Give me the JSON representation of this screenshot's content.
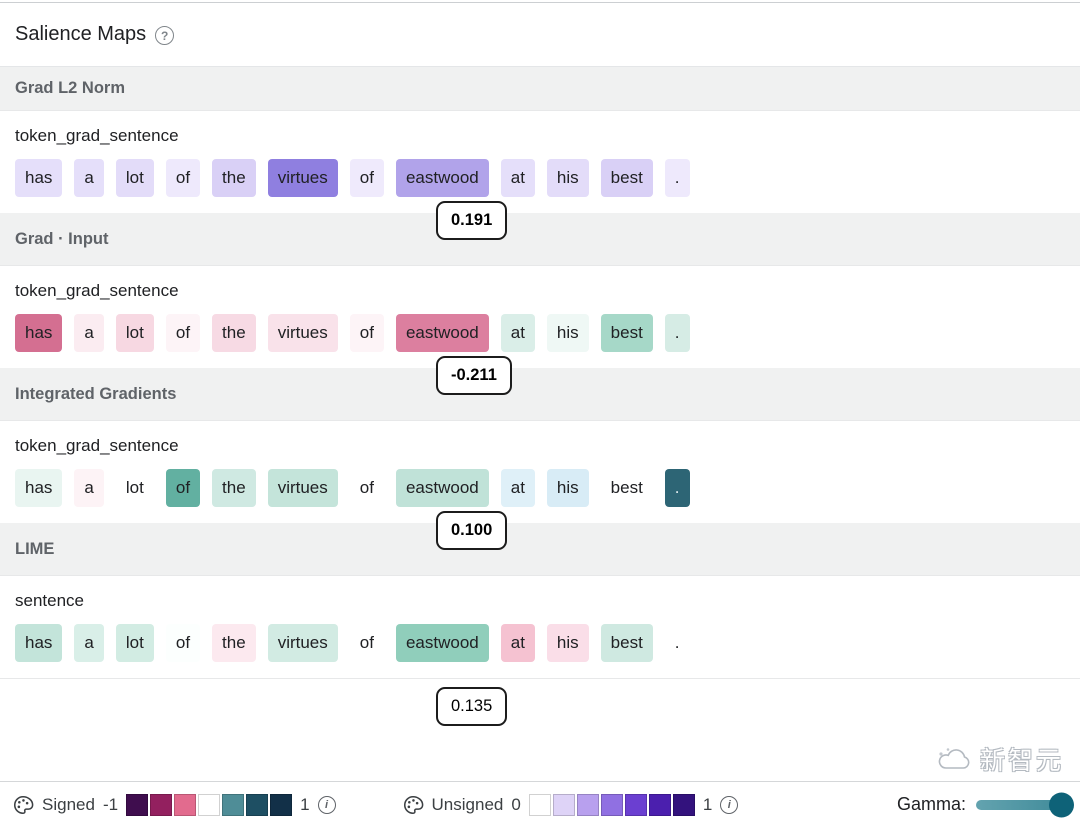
{
  "title": "Salience Maps",
  "help_icon": "?",
  "sections": [
    {
      "header": "Grad L2 Norm",
      "row_label": "token_grad_sentence",
      "badge": "0.191",
      "tokens": [
        {
          "text": "has",
          "bg": "#e5dffa"
        },
        {
          "text": "a",
          "bg": "#e5dffa"
        },
        {
          "text": "lot",
          "bg": "#e3dcf9"
        },
        {
          "text": "of",
          "bg": "#eee9fc"
        },
        {
          "text": "the",
          "bg": "#d9d0f6"
        },
        {
          "text": "virtues",
          "bg": "#8f7fe0"
        },
        {
          "text": "of",
          "bg": "#efeafc"
        },
        {
          "text": "eastwood",
          "bg": "#b1a3ea"
        },
        {
          "text": "at",
          "bg": "#e5dffa"
        },
        {
          "text": "his",
          "bg": "#e3dcf9"
        },
        {
          "text": "best",
          "bg": "#d9d0f6"
        },
        {
          "text": ".",
          "bg": "#eee9fc"
        }
      ]
    },
    {
      "header": "Grad · Input",
      "row_label": "token_grad_sentence",
      "badge": "-0.211",
      "tokens": [
        {
          "text": "has",
          "bg": "#d46f91"
        },
        {
          "text": "a",
          "bg": "#fbecf1"
        },
        {
          "text": "lot",
          "bg": "#f7d8e2"
        },
        {
          "text": "of",
          "bg": "#fdf4f7"
        },
        {
          "text": "the",
          "bg": "#f7dae4"
        },
        {
          "text": "virtues",
          "bg": "#f9e2ea"
        },
        {
          "text": "of",
          "bg": "#fdf4f7"
        },
        {
          "text": "eastwood",
          "bg": "#dc7f9f"
        },
        {
          "text": "at",
          "bg": "#daeee8"
        },
        {
          "text": "his",
          "bg": "#eff8f5"
        },
        {
          "text": "best",
          "bg": "#a6d8c8"
        },
        {
          "text": ".",
          "bg": "#d6ece5"
        }
      ]
    },
    {
      "header": "Integrated Gradients",
      "row_label": "token_grad_sentence",
      "badge": "0.100",
      "tokens": [
        {
          "text": "has",
          "bg": "#e9f5f1"
        },
        {
          "text": "a",
          "bg": "#fdf3f6"
        },
        {
          "text": "lot",
          "bg": "#ffffff"
        },
        {
          "text": "of",
          "bg": "#62b0a1"
        },
        {
          "text": "the",
          "bg": "#cfe9e2"
        },
        {
          "text": "virtues",
          "bg": "#c4e4da"
        },
        {
          "text": "of",
          "bg": "#ffffff"
        },
        {
          "text": "eastwood",
          "bg": "#c0e2d8"
        },
        {
          "text": "at",
          "bg": "#dff0f8"
        },
        {
          "text": "his",
          "bg": "#d8ecf6"
        },
        {
          "text": "best",
          "bg": "#ffffff"
        },
        {
          "text": ".",
          "bg": "#2d6575",
          "fg": "#e6f0f2"
        }
      ]
    },
    {
      "header": "LIME",
      "row_label": "sentence",
      "badge": "0.135",
      "tokens": [
        {
          "text": "has",
          "bg": "#c3e4da"
        },
        {
          "text": "a",
          "bg": "#d9efe8"
        },
        {
          "text": "lot",
          "bg": "#d2ece3"
        },
        {
          "text": "of",
          "bg": "#fcfffe"
        },
        {
          "text": "the",
          "bg": "#fce9ef"
        },
        {
          "text": "virtues",
          "bg": "#d2ebe3"
        },
        {
          "text": "of",
          "bg": "#ffffff"
        },
        {
          "text": "eastwood",
          "bg": "#90cebb"
        },
        {
          "text": "at",
          "bg": "#f5c2d1"
        },
        {
          "text": "his",
          "bg": "#fadee8"
        },
        {
          "text": "best",
          "bg": "#cfe9e1"
        },
        {
          "text": ".",
          "bg": "#ffffff"
        }
      ]
    }
  ],
  "footer": {
    "signed": {
      "label": "Signed",
      "min": "-1",
      "max": "1",
      "info": "i",
      "swatches": [
        "#3f0d4e",
        "#93205f",
        "#e26b8e",
        "#ffffff",
        "#4f8d97",
        "#1e4f63",
        "#123048"
      ]
    },
    "unsigned": {
      "label": "Unsigned",
      "min": "0",
      "max": "1",
      "info": "i",
      "swatches": [
        "#ffffff",
        "#ded3f7",
        "#b8a0ee",
        "#9070e2",
        "#6b3fd1",
        "#4b1fae",
        "#33127d"
      ]
    },
    "gamma_label": "Gamma:"
  },
  "watermark": "新智元"
}
